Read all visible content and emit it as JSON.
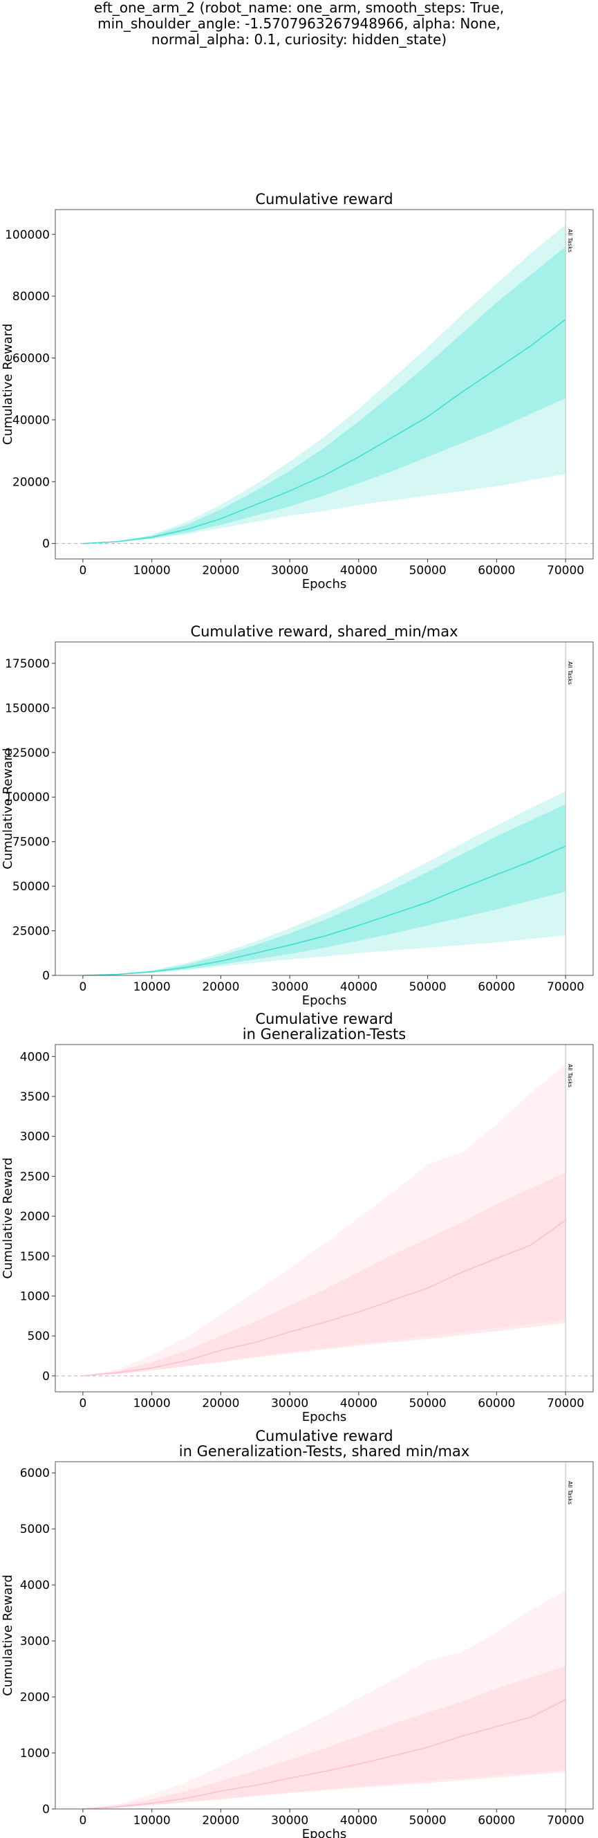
{
  "figure": {
    "title_lines": [
      "eft_one_arm_2 (robot_name: one_arm, smooth_steps: True,",
      "min_shoulder_angle: -1.5707963267948966, alpha: None,",
      "normal_alpha: 0.1, curiosity: hidden_state)"
    ]
  },
  "chart_data": [
    {
      "type": "area",
      "title": "Cumulative reward",
      "title_lines": [
        "Cumulative reward"
      ],
      "xlabel": "Epochs",
      "ylabel": "Cumulative Reward",
      "xlim": [
        -4000,
        74000
      ],
      "ylim": [
        -5000,
        108000
      ],
      "xticks": [
        0,
        10000,
        20000,
        30000,
        40000,
        50000,
        60000,
        70000
      ],
      "yticks": [
        0,
        20000,
        40000,
        60000,
        80000,
        100000
      ],
      "color": "#40e0d0",
      "zero_line": true,
      "vline": {
        "x": 70000,
        "label": "All Tasks"
      },
      "x": [
        0,
        5000,
        10000,
        15000,
        20000,
        25000,
        30000,
        35000,
        40000,
        45000,
        50000,
        55000,
        60000,
        65000,
        70000
      ],
      "series": [
        {
          "name": "",
          "role": "mean",
          "values": [
            0,
            600,
            2000,
            4500,
            8000,
            12500,
            17000,
            22000,
            28000,
            34500,
            41000,
            49000,
            56500,
            64000,
            72500
          ]
        },
        {
          "role": "std_low",
          "values": [
            0,
            500,
            1700,
            3500,
            6000,
            9000,
            12000,
            15500,
            19500,
            23500,
            28000,
            32500,
            37000,
            42000,
            47000
          ]
        },
        {
          "role": "std_high",
          "values": [
            0,
            700,
            2500,
            6000,
            11000,
            17000,
            23500,
            31000,
            39500,
            48500,
            58000,
            68000,
            78000,
            87000,
            96000
          ]
        },
        {
          "role": "min",
          "values": [
            0,
            400,
            1400,
            3000,
            5000,
            7000,
            9000,
            10500,
            12500,
            14000,
            15500,
            17000,
            18500,
            20500,
            22500
          ]
        },
        {
          "role": "max",
          "values": [
            0,
            800,
            2800,
            7000,
            12500,
            19000,
            26500,
            34500,
            43500,
            53500,
            63500,
            74000,
            84000,
            94000,
            103000
          ]
        }
      ]
    },
    {
      "type": "area",
      "title": "Cumulative reward, shared_min/max",
      "title_lines": [
        "Cumulative reward, shared_min/max"
      ],
      "xlabel": "Epochs",
      "ylabel": "Cumulative Reward",
      "xlim": [
        -4000,
        74000
      ],
      "ylim": [
        0,
        187000
      ],
      "xticks": [
        0,
        10000,
        20000,
        30000,
        40000,
        50000,
        60000,
        70000
      ],
      "yticks": [
        0,
        25000,
        50000,
        75000,
        100000,
        125000,
        150000,
        175000
      ],
      "color": "#40e0d0",
      "zero_line": false,
      "vline": {
        "x": 70000,
        "label": "All Tasks"
      },
      "x": [
        0,
        5000,
        10000,
        15000,
        20000,
        25000,
        30000,
        35000,
        40000,
        45000,
        50000,
        55000,
        60000,
        65000,
        70000
      ],
      "series": [
        {
          "name": "",
          "role": "mean",
          "values": [
            0,
            600,
            2000,
            4500,
            8000,
            12500,
            17000,
            22000,
            28000,
            34500,
            41000,
            49000,
            56500,
            64000,
            72500
          ]
        },
        {
          "role": "std_low",
          "values": [
            0,
            500,
            1700,
            3500,
            6000,
            9000,
            12000,
            15500,
            19500,
            23500,
            28000,
            32500,
            37000,
            42000,
            47000
          ]
        },
        {
          "role": "std_high",
          "values": [
            0,
            700,
            2500,
            6000,
            11000,
            17000,
            23500,
            31000,
            39500,
            48500,
            58000,
            68000,
            78000,
            87000,
            96000
          ]
        },
        {
          "role": "min",
          "values": [
            0,
            400,
            1400,
            3000,
            5000,
            7000,
            9000,
            10500,
            12500,
            14000,
            15500,
            17000,
            18500,
            20500,
            22500
          ]
        },
        {
          "role": "max",
          "values": [
            0,
            800,
            2800,
            7000,
            12500,
            19000,
            26500,
            34500,
            43500,
            53500,
            63500,
            74000,
            84000,
            94000,
            103000
          ]
        }
      ]
    },
    {
      "type": "area",
      "title": "Cumulative reward in Generalization-Tests",
      "title_lines": [
        "Cumulative reward",
        "in Generalization-Tests"
      ],
      "xlabel": "Epochs",
      "ylabel": "Cumulative Reward",
      "xlim": [
        -4000,
        74000
      ],
      "ylim": [
        -200,
        4150
      ],
      "xticks": [
        0,
        10000,
        20000,
        30000,
        40000,
        50000,
        60000,
        70000
      ],
      "yticks": [
        0,
        500,
        1000,
        1500,
        2000,
        2500,
        3000,
        3500,
        4000
      ],
      "color": "#ffc0cb",
      "zero_line": true,
      "vline": {
        "x": 70000,
        "label": "All Tasks"
      },
      "x": [
        0,
        5000,
        10000,
        15000,
        20000,
        25000,
        30000,
        35000,
        40000,
        45000,
        50000,
        55000,
        60000,
        65000,
        70000
      ],
      "series": [
        {
          "name": "",
          "role": "mean",
          "values": [
            0,
            40,
            100,
            190,
            320,
            420,
            550,
            670,
            800,
            950,
            1100,
            1300,
            1470,
            1640,
            1950
          ]
        },
        {
          "role": "std_low",
          "values": [
            0,
            25,
            70,
            120,
            170,
            230,
            280,
            330,
            380,
            420,
            460,
            510,
            560,
            610,
            660
          ]
        },
        {
          "role": "std_high",
          "values": [
            0,
            60,
            170,
            320,
            500,
            680,
            880,
            1080,
            1300,
            1520,
            1720,
            1920,
            2150,
            2350,
            2550
          ]
        },
        {
          "role": "min",
          "values": [
            0,
            20,
            65,
            120,
            180,
            240,
            300,
            350,
            400,
            450,
            500,
            550,
            600,
            650,
            700
          ]
        },
        {
          "role": "max",
          "values": [
            0,
            80,
            260,
            480,
            760,
            1050,
            1350,
            1650,
            1980,
            2300,
            2650,
            2800,
            3150,
            3550,
            3900
          ]
        }
      ]
    },
    {
      "type": "area",
      "title": "Cumulative reward in Generalization-Tests, shared min/max",
      "title_lines": [
        "Cumulative reward",
        "in Generalization-Tests, shared min/max"
      ],
      "xlabel": "Epochs",
      "ylabel": "Cumulative Reward",
      "xlim": [
        -4000,
        74000
      ],
      "ylim": [
        0,
        6200
      ],
      "xticks": [
        0,
        10000,
        20000,
        30000,
        40000,
        50000,
        60000,
        70000
      ],
      "yticks": [
        0,
        1000,
        2000,
        3000,
        4000,
        5000,
        6000
      ],
      "color": "#ffc0cb",
      "zero_line": false,
      "vline": {
        "x": 70000,
        "label": "All Tasks"
      },
      "x": [
        0,
        5000,
        10000,
        15000,
        20000,
        25000,
        30000,
        35000,
        40000,
        45000,
        50000,
        55000,
        60000,
        65000,
        70000
      ],
      "series": [
        {
          "name": "",
          "role": "mean",
          "values": [
            0,
            40,
            100,
            190,
            320,
            420,
            550,
            670,
            800,
            950,
            1100,
            1300,
            1470,
            1640,
            1950
          ]
        },
        {
          "role": "std_low",
          "values": [
            0,
            25,
            70,
            120,
            170,
            230,
            280,
            330,
            380,
            420,
            460,
            510,
            560,
            610,
            660
          ]
        },
        {
          "role": "std_high",
          "values": [
            0,
            60,
            170,
            320,
            500,
            680,
            880,
            1080,
            1300,
            1520,
            1720,
            1920,
            2150,
            2350,
            2550
          ]
        },
        {
          "role": "min",
          "values": [
            0,
            20,
            65,
            120,
            180,
            240,
            300,
            350,
            400,
            450,
            500,
            550,
            600,
            650,
            700
          ]
        },
        {
          "role": "max",
          "values": [
            0,
            80,
            260,
            480,
            760,
            1050,
            1350,
            1650,
            1980,
            2300,
            2650,
            2800,
            3150,
            3550,
            3900
          ]
        }
      ]
    }
  ]
}
